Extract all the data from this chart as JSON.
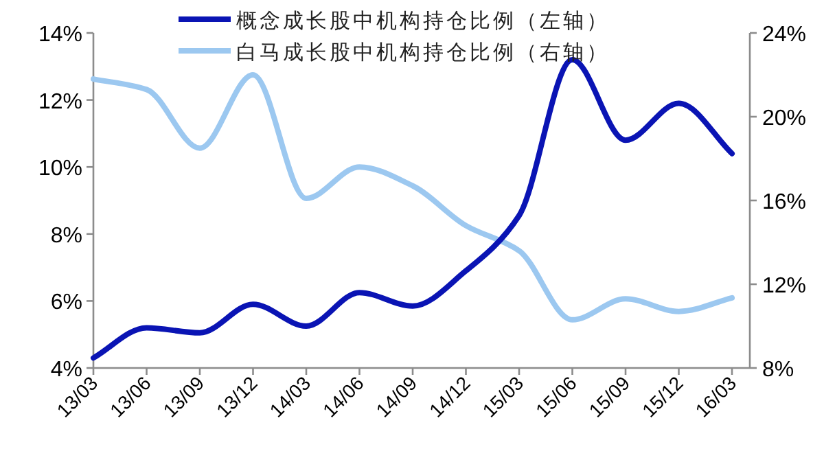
{
  "chart_data": {
    "type": "line",
    "categories": [
      "13/03",
      "13/06",
      "13/09",
      "13/12",
      "14/03",
      "14/06",
      "14/09",
      "14/12",
      "15/03",
      "15/06",
      "15/09",
      "15/12",
      "16/03"
    ],
    "series": [
      {
        "name": "概念成长股中机构持仓比例（左轴）",
        "color": "#0a14b4",
        "values": [
          4.3,
          5.2,
          5.05,
          5.9,
          5.25,
          6.25,
          5.85,
          6.9,
          8.55,
          13.2,
          10.8,
          11.9,
          10.4
        ]
      },
      {
        "name": "白马成长股中机构持仓比例（右轴）",
        "color": "#9cc8f0",
        "axis": "y2",
        "values": [
          21.8,
          21.3,
          18.5,
          22.0,
          16.1,
          17.6,
          16.7,
          14.8,
          13.6,
          10.3,
          11.3,
          10.7,
          11.35
        ]
      }
    ],
    "ylim": [
      4,
      14
    ],
    "yticks": [
      {
        "value": 4,
        "label": "4%"
      },
      {
        "value": 6,
        "label": "6%"
      },
      {
        "value": 8,
        "label": "8%"
      },
      {
        "value": 10,
        "label": "10%"
      },
      {
        "value": 12,
        "label": "12%"
      },
      {
        "value": 14,
        "label": "14%"
      }
    ],
    "y2lim": [
      8,
      24
    ],
    "y2ticks": [
      {
        "value": 8,
        "label": "8%"
      },
      {
        "value": 12,
        "label": "12%"
      },
      {
        "value": 16,
        "label": "16%"
      },
      {
        "value": 20,
        "label": "20%"
      },
      {
        "value": 24,
        "label": "24%"
      }
    ],
    "legend": "top"
  }
}
